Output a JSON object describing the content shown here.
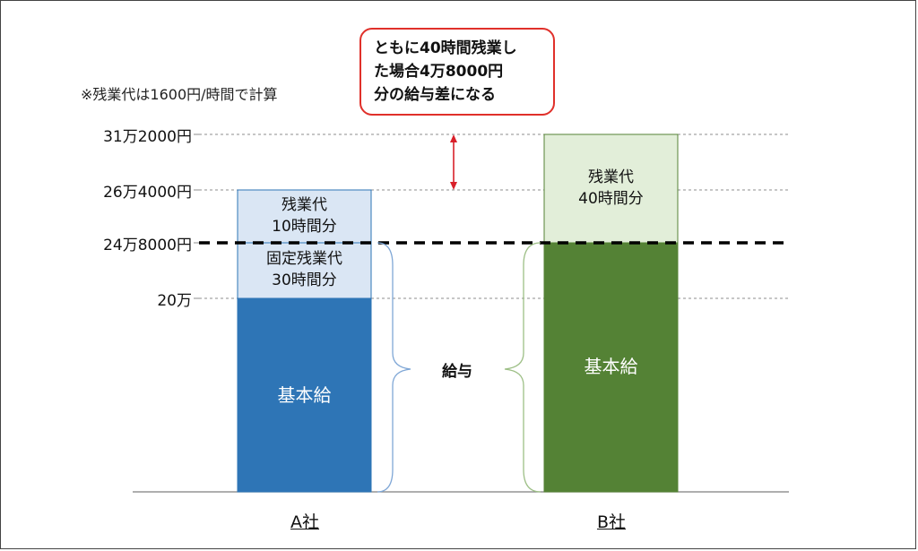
{
  "note": "※残業代は1600円/時間で計算",
  "callout": {
    "lines": [
      "ともに40時間残業し",
      "た場合4万8000円",
      "分の給与差になる"
    ]
  },
  "salary_label": "給与",
  "colors": {
    "a_base": "#2e75b6",
    "a_overtime": "#dae6f4",
    "b_base": "#548235",
    "b_overtime": "#e2eed9",
    "callout_border": "#e0302a",
    "arrow": "#d9202a"
  },
  "chart_data": {
    "type": "bar",
    "stacked": true,
    "unit": "円",
    "categories": [
      "A社",
      "B社"
    ],
    "y_ticks": [
      {
        "value": 200000,
        "label": "20万"
      },
      {
        "value": 248000,
        "label": "24万8000円"
      },
      {
        "value": 264000,
        "label": "26万4000円"
      },
      {
        "value": 312000,
        "label": "31万2000円"
      }
    ],
    "ylim": [
      0,
      312000
    ],
    "reference_line": {
      "value": 248000,
      "style": "dashed"
    },
    "bars": [
      {
        "category": "A社",
        "segments": [
          {
            "label": [
              "基本給"
            ],
            "from": 0,
            "to": 200000,
            "color": "#2e75b6",
            "text_color": "#ffffff"
          },
          {
            "label": [
              "固定残業代",
              "30時間分"
            ],
            "from": 200000,
            "to": 248000,
            "color": "#dae6f4",
            "text_color": "#111111"
          },
          {
            "label": [
              "残業代",
              "10時間分"
            ],
            "from": 248000,
            "to": 264000,
            "color": "#dae6f4",
            "text_color": "#111111"
          }
        ]
      },
      {
        "category": "B社",
        "segments": [
          {
            "label": [
              "基本給"
            ],
            "from": 0,
            "to": 248000,
            "color": "#548235",
            "text_color": "#ffffff"
          },
          {
            "label": [
              "残業代",
              "40時間分"
            ],
            "from": 248000,
            "to": 312000,
            "color": "#e2eed9",
            "text_color": "#111111"
          }
        ]
      }
    ],
    "difference": {
      "from": 264000,
      "to": 312000,
      "label": "4万8000円"
    }
  }
}
